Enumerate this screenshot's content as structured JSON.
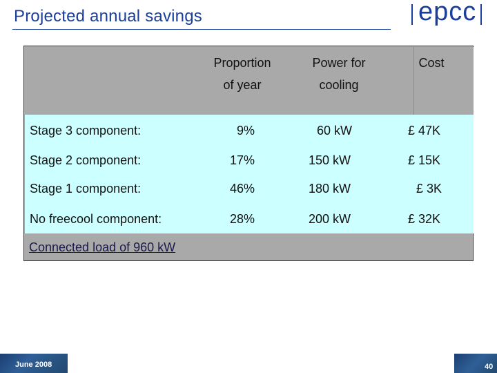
{
  "slide": {
    "title": "Projected annual savings",
    "logo_text": "epcc"
  },
  "table": {
    "headers": {
      "proportion_line1": "Proportion",
      "proportion_line2": "of year",
      "power_line1": "Power for",
      "power_line2": "cooling",
      "cost": "Cost"
    },
    "rows": [
      {
        "label": "Stage 3 component:",
        "proportion": "9%",
        "power": "60 kW",
        "cost": "£ 47K"
      },
      {
        "label": "Stage 2 component:",
        "proportion": "17%",
        "power": "150 kW",
        "cost": "£ 15K"
      },
      {
        "label": "Stage 1 component:",
        "proportion": "46%",
        "power": "180 kW",
        "cost": "£ 3K"
      },
      {
        "label": "No freecool component:",
        "proportion": "28%",
        "power": "200 kW",
        "cost": "£ 32K"
      }
    ],
    "footnote": "Connected load of 960 kW"
  },
  "footer": {
    "date": "June 2008",
    "page_number": "40"
  }
}
